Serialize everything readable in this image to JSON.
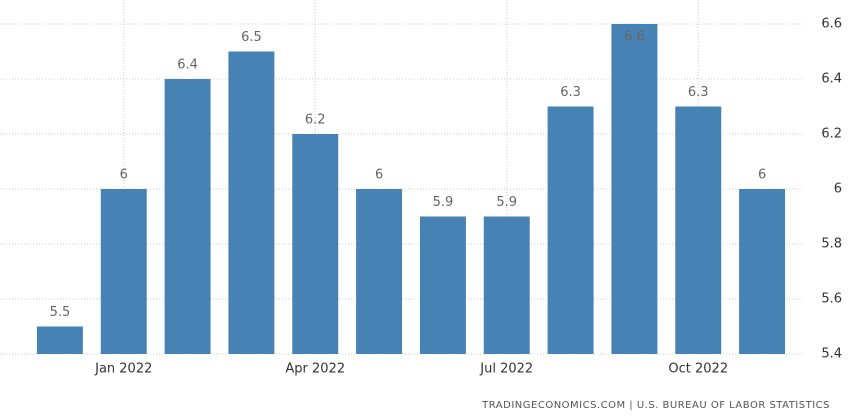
{
  "chart_data": {
    "type": "bar",
    "categories": [
      null,
      "Jan 2022",
      null,
      null,
      "Apr 2022",
      null,
      null,
      "Jul 2022",
      null,
      null,
      "Oct 2022",
      null
    ],
    "values": [
      5.5,
      6,
      6.4,
      6.5,
      6.2,
      6,
      5.9,
      5.9,
      6.3,
      6.6,
      6.3,
      6
    ],
    "color": "#4682b4",
    "ylim": [
      5.4,
      6.6
    ],
    "yticks": [
      5.4,
      5.6,
      5.8,
      6,
      6.2,
      6.4,
      6.6
    ],
    "grid": true,
    "source": "TRADINGECONOMICS.COM | U.S. BUREAU OF LABOR STATISTICS"
  }
}
